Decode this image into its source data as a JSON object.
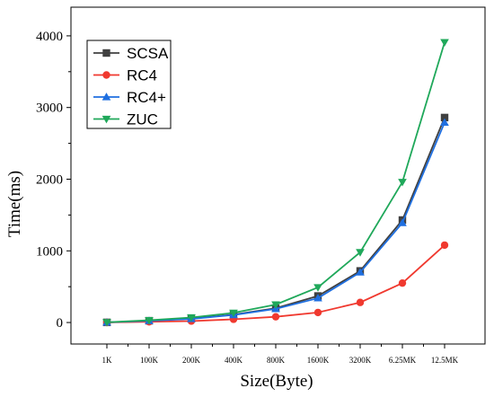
{
  "chart_data": {
    "type": "line",
    "title": "",
    "xlabel": "Size(Byte)",
    "ylabel": "Time(ms)",
    "categories": [
      "1K",
      "100K",
      "200K",
      "400K",
      "800K",
      "1600K",
      "3200K",
      "6.25MK",
      "12.5MK"
    ],
    "ylim": [
      -300,
      4400
    ],
    "yticks": [
      0,
      1000,
      2000,
      3000,
      4000
    ],
    "grid": false,
    "legend_position": "top-left",
    "series": [
      {
        "name": "SCSA",
        "color": "#404040",
        "marker": "square",
        "values": [
          2,
          25,
          55,
          110,
          200,
          370,
          720,
          1430,
          2860
        ]
      },
      {
        "name": "RC4",
        "color": "#f0392f",
        "marker": "circle",
        "values": [
          1,
          10,
          20,
          45,
          80,
          140,
          280,
          550,
          1080
        ]
      },
      {
        "name": "RC4+",
        "color": "#1f6fe0",
        "marker": "triangle-up",
        "values": [
          2,
          24,
          50,
          105,
          190,
          340,
          700,
          1390,
          2790
        ]
      },
      {
        "name": "ZUC",
        "color": "#1fa85a",
        "marker": "triangle-down",
        "values": [
          3,
          32,
          70,
          135,
          250,
          490,
          980,
          1960,
          3910
        ]
      }
    ]
  }
}
